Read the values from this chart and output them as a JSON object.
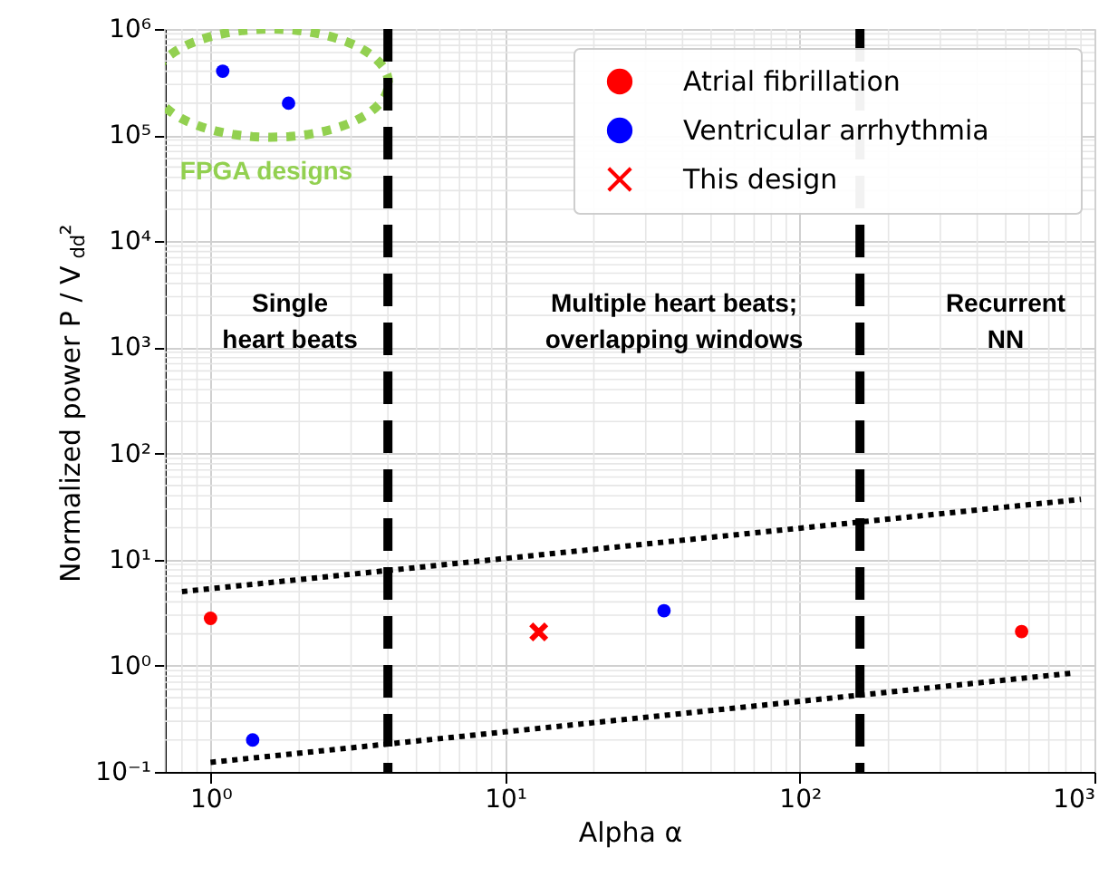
{
  "chart_data": {
    "type": "scatter",
    "xlabel": "Alpha α",
    "ylabel": "Normalized power P / V$_{dd}$²",
    "log": "xy",
    "grid": true,
    "legend": "top right",
    "xlim": [
      0.7,
      1000
    ],
    "ylim": [
      0.1,
      1000000
    ],
    "xticks": [
      {
        "value": 1,
        "label": "10⁰"
      },
      {
        "value": 10,
        "label": "10¹"
      },
      {
        "value": 100,
        "label": "10²"
      },
      {
        "value": 1000,
        "label": "10³"
      }
    ],
    "yticks": [
      {
        "value": 0.1,
        "label": "10⁻¹"
      },
      {
        "value": 1,
        "label": "10⁰"
      },
      {
        "value": 10,
        "label": "10¹"
      },
      {
        "value": 100,
        "label": "10²"
      },
      {
        "value": 1000,
        "label": "10³"
      },
      {
        "value": 10000,
        "label": "10⁴"
      },
      {
        "value": 100000,
        "label": "10⁵"
      },
      {
        "value": 1000000,
        "label": "10⁶"
      }
    ],
    "series": [
      {
        "name": "Atrial fibrillation",
        "type": "scatter",
        "marker": "circle",
        "color": "#ff0000",
        "x": [
          1.0,
          566
        ],
        "values": [
          2.8,
          2.1
        ]
      },
      {
        "name": "Ventricular arrhythmia",
        "type": "scatter",
        "marker": "circle",
        "color": "#0000ff",
        "x": [
          1.1,
          1.84,
          1.39,
          34.6
        ],
        "values": [
          400000,
          200000,
          0.2,
          3.3
        ]
      },
      {
        "name": "This design",
        "type": "scatter",
        "marker": "cross",
        "color": "#ff0000",
        "x": [
          13.0
        ],
        "values": [
          2.08
        ]
      },
      {
        "type": "line",
        "line_style": "dotted",
        "color": "#000000",
        "x": [
          0.8,
          900
        ],
        "values": [
          5.0,
          37
        ]
      },
      {
        "type": "line",
        "line_style": "dotted",
        "color": "#000000",
        "x": [
          1.0,
          830
        ],
        "values": [
          0.123,
          0.85
        ]
      }
    ],
    "ref_lines": [
      {
        "axis": "x",
        "value": 4,
        "line_style": "dashed",
        "color": "#000000"
      },
      {
        "axis": "x",
        "value": 160,
        "line_style": "dashed",
        "color": "#000000"
      }
    ],
    "annotations": [
      "Single\nheart beats",
      "Multiple heart beats;\noverlapping windows",
      "Recurrent\nNN",
      "FPGA designs"
    ]
  }
}
